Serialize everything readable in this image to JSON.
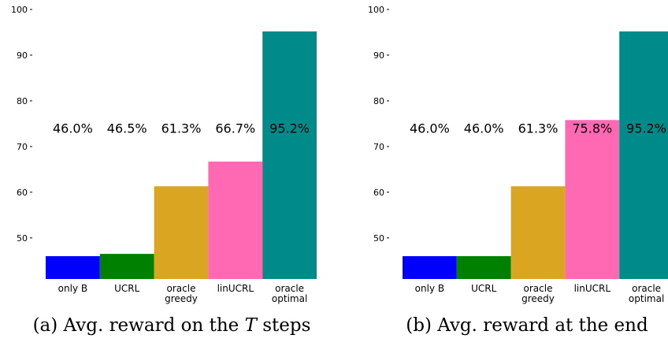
{
  "chart_data": [
    {
      "type": "bar",
      "caption_prefix": "(a) Avg. reward on the ",
      "caption_var": "T",
      "caption_suffix": " steps",
      "categories": [
        [
          "only B"
        ],
        [
          "UCRL"
        ],
        [
          "oracle",
          "greedy"
        ],
        [
          "linUCRL"
        ],
        [
          "oracle",
          "optimal"
        ]
      ],
      "values": [
        46.0,
        46.5,
        61.3,
        66.7,
        95.2
      ],
      "value_labels": [
        "46.0%",
        "46.5%",
        "61.3%",
        "66.7%",
        "95.2%"
      ],
      "colors": [
        "#0000ff",
        "#008000",
        "#daa520",
        "#ff69b4",
        "#008b8b"
      ],
      "yticks": [
        50,
        60,
        70,
        80,
        90,
        100
      ],
      "ylim": [
        41,
        100
      ],
      "label_y": 74,
      "grid": false
    },
    {
      "type": "bar",
      "caption_prefix": "(b) Avg. reward at the end",
      "caption_var": "",
      "caption_suffix": "",
      "categories": [
        [
          "only B"
        ],
        [
          "UCRL"
        ],
        [
          "oracle",
          "greedy"
        ],
        [
          "linUCRL"
        ],
        [
          "oracle",
          "optimal"
        ]
      ],
      "values": [
        46.0,
        46.0,
        61.3,
        75.8,
        95.2
      ],
      "value_labels": [
        "46.0%",
        "46.0%",
        "61.3%",
        "75.8%",
        "95.2%"
      ],
      "colors": [
        "#0000ff",
        "#008000",
        "#daa520",
        "#ff69b4",
        "#008b8b"
      ],
      "yticks": [
        50,
        60,
        70,
        80,
        90,
        100
      ],
      "ylim": [
        41,
        100
      ],
      "label_y": 74,
      "grid": false
    }
  ]
}
